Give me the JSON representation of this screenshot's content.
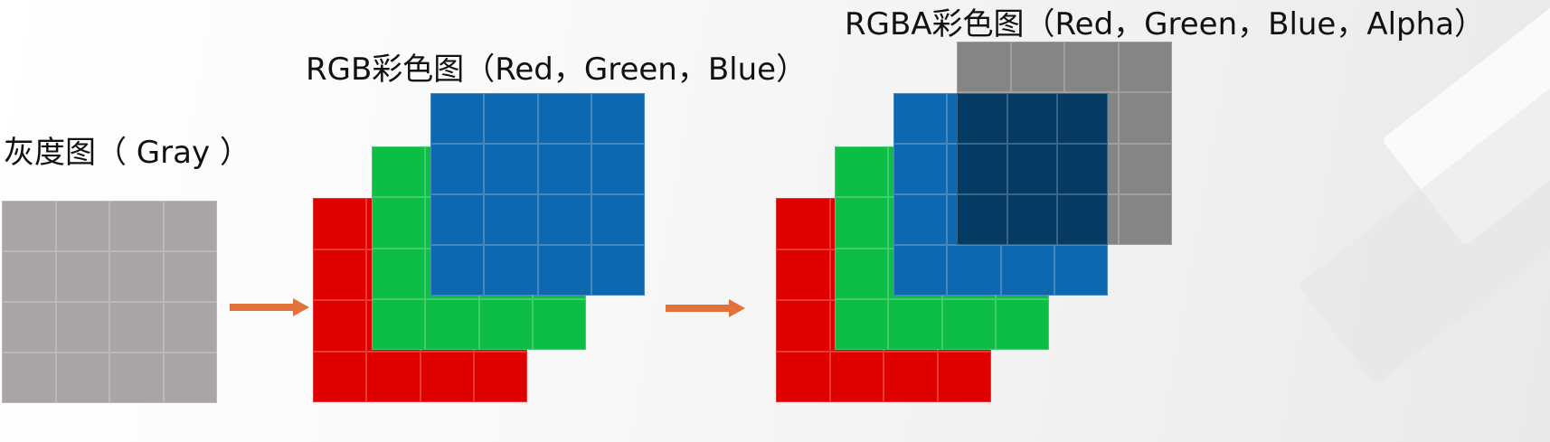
{
  "gray": {
    "label": "灰度图（ Gray ）",
    "color": "#a9a4a6"
  },
  "rgb": {
    "label": "RGB彩色图（Red，Green，Blue）"
  },
  "rgba": {
    "label": "RGBA彩色图（Red，Green，Blue，Alpha）"
  },
  "colors": {
    "red": "#e00000",
    "green": "#0cbe46",
    "blue": "#0d68b0",
    "alpha": "#858585",
    "overlap": "#053a62",
    "arrow": "#e2713a"
  },
  "grid_size": 4
}
